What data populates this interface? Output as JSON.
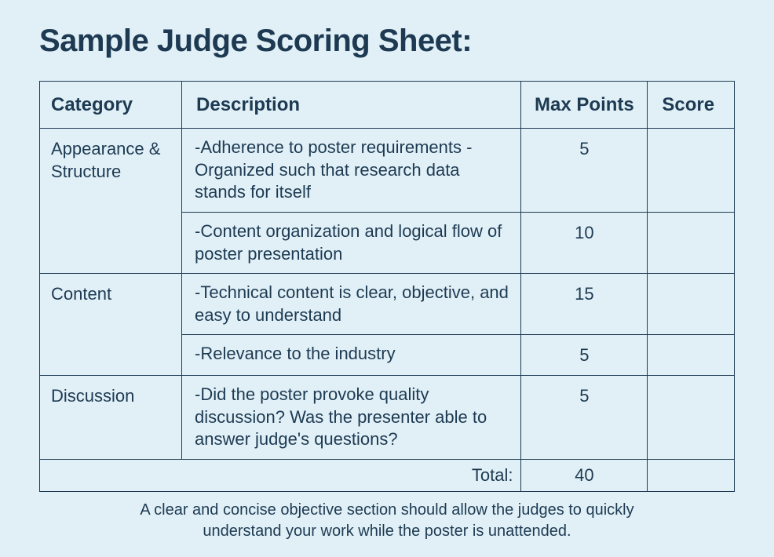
{
  "title": "Sample Judge Scoring Sheet:",
  "background_color": "#e1f0f7",
  "text_color": "#1d3a52",
  "border_color": "#1d3a52",
  "columns": {
    "category": "Category",
    "description": "Description",
    "max_points": "Max Points",
    "score": "Score"
  },
  "rows": [
    {
      "category": "Appearance & Structure",
      "description": "-Adherence to poster requirements\n-Organized such that research data stands for itself",
      "max_points": "5",
      "score": ""
    },
    {
      "category": "",
      "description": "-Content organization and logical flow of poster presentation",
      "max_points": "10",
      "score": ""
    },
    {
      "category": "Content",
      "description": "-Technical content is clear, objective, and easy to understand",
      "max_points": "15",
      "score": ""
    },
    {
      "category": "",
      "description": "-Relevance to the industry",
      "max_points": "5",
      "score": ""
    },
    {
      "category": "Discussion",
      "description": "-Did the poster provoke quality discussion? Was the presenter able to answer judge's questions?",
      "max_points": "5",
      "score": ""
    }
  ],
  "total": {
    "label": "Total:",
    "max_points": "40",
    "score": ""
  },
  "caption": "A clear and concise objective section should allow the judges to quickly understand your work while the poster is unattended."
}
